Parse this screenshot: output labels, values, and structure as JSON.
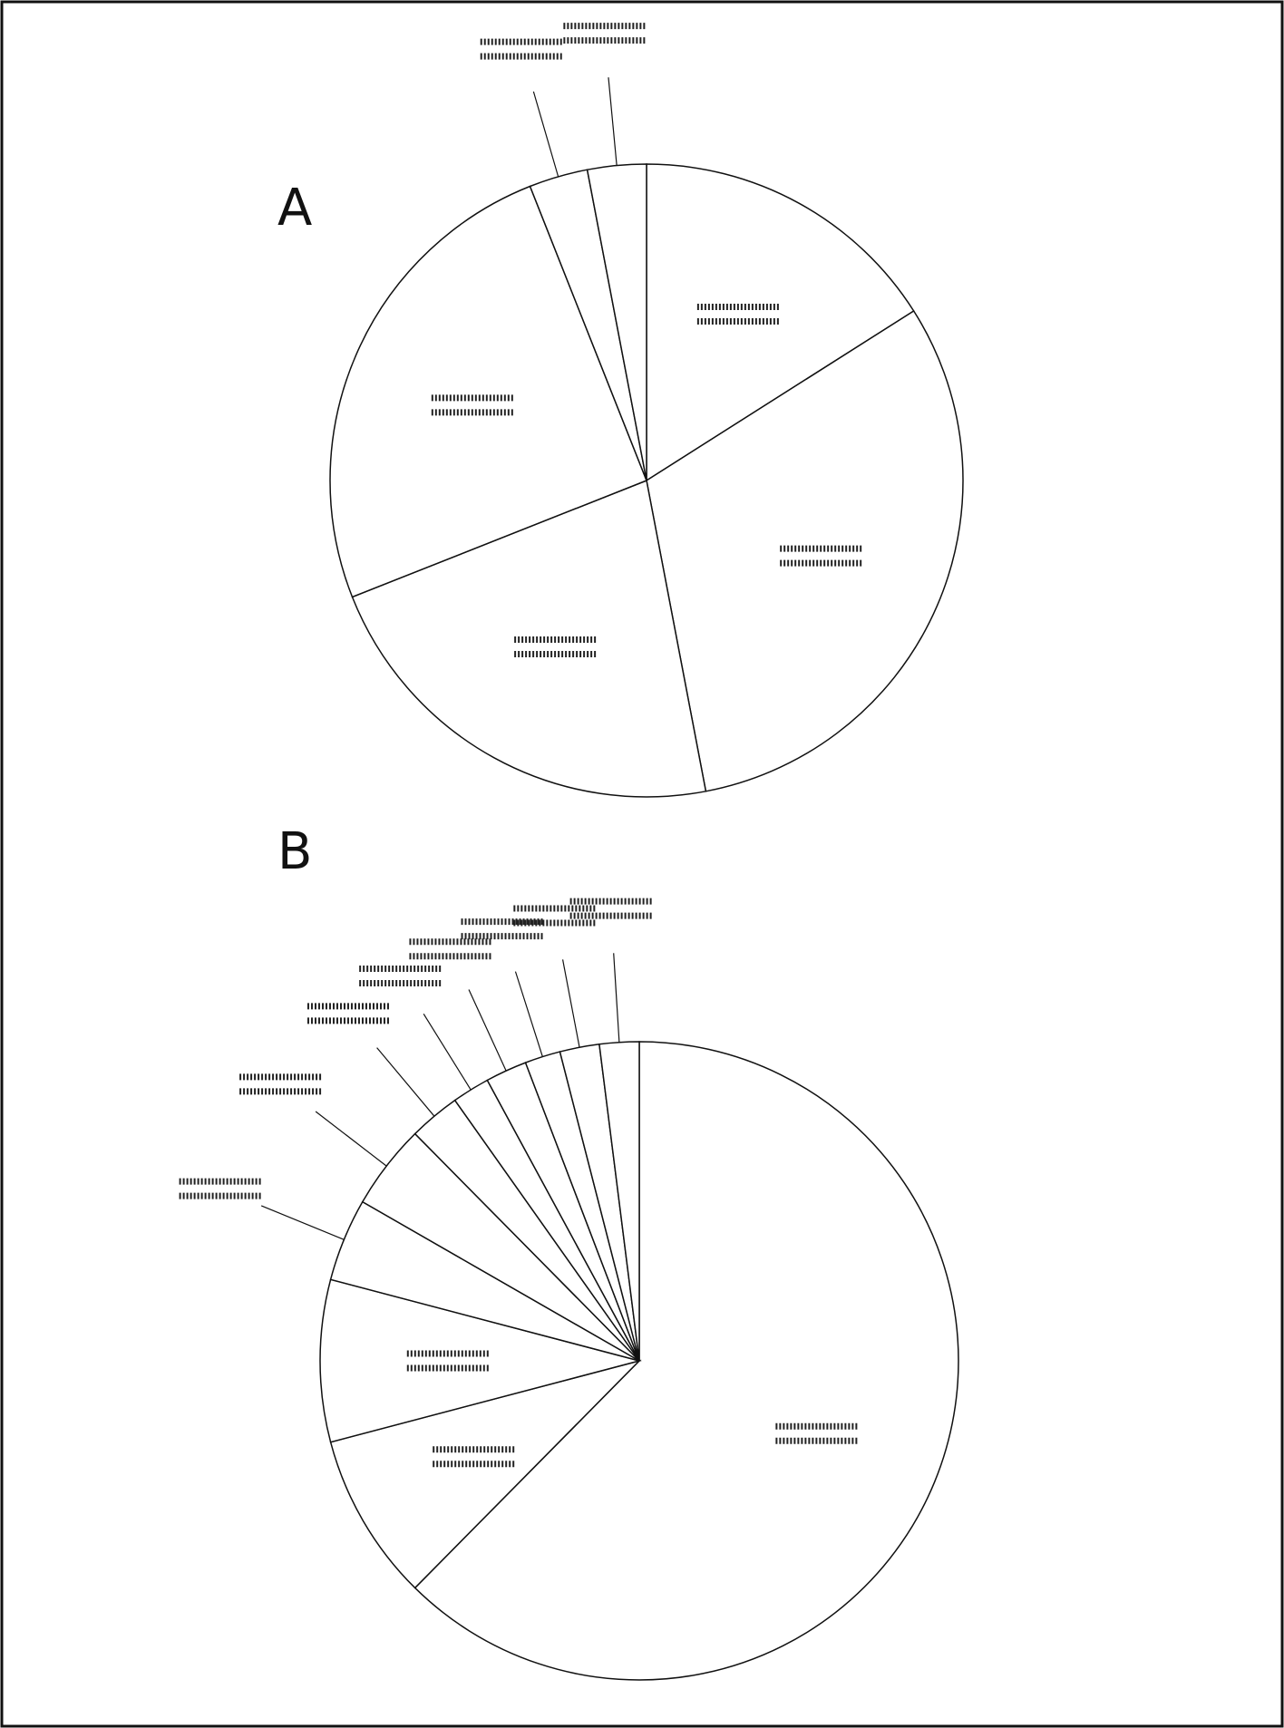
{
  "chart_data": [
    {
      "type": "pie",
      "title": "A",
      "categories": [
        null,
        null,
        null,
        null,
        null,
        null
      ],
      "values": [
        16,
        31,
        22,
        25,
        3,
        3
      ]
    },
    {
      "type": "pie",
      "title": "B",
      "categories": [
        null,
        null,
        null,
        null,
        null,
        null,
        null,
        null,
        null,
        null,
        null
      ],
      "values": [
        62.4,
        8.5,
        8.2,
        4.2,
        4.3,
        2.6,
        1.9,
        2.1,
        1.8,
        2.0,
        2.0
      ]
    }
  ]
}
